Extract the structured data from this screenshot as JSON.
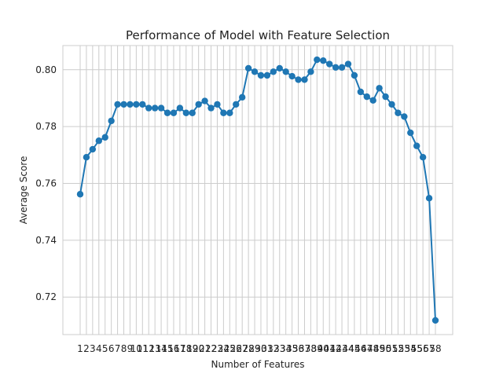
{
  "chart_data": {
    "type": "line",
    "title": "Performance of Model with Feature Selection",
    "xlabel": "Number of Features",
    "ylabel": "Average Score",
    "x": [
      1,
      2,
      3,
      4,
      5,
      6,
      7,
      8,
      9,
      10,
      11,
      12,
      13,
      14,
      15,
      16,
      17,
      18,
      19,
      20,
      21,
      22,
      23,
      24,
      25,
      26,
      27,
      28,
      29,
      30,
      31,
      32,
      33,
      34,
      35,
      36,
      37,
      38,
      39,
      40,
      41,
      42,
      43,
      44,
      45,
      46,
      47,
      48,
      49,
      50,
      51,
      52,
      53,
      54,
      55,
      56,
      57,
      58
    ],
    "x_tick_labels": [
      "1",
      "2",
      "3",
      "4",
      "5",
      "6",
      "7",
      "8",
      "9",
      "10",
      "11",
      "12",
      "13",
      "14",
      "15",
      "16",
      "17",
      "18",
      "19",
      "20",
      "21",
      "22",
      "23",
      "24",
      "25",
      "26",
      "27",
      "28",
      "29",
      "30",
      "31",
      "32",
      "33",
      "34",
      "35",
      "36",
      "37",
      "38",
      "39",
      "40",
      "41",
      "42",
      "43",
      "44",
      "45",
      "46",
      "47",
      "48",
      "49",
      "50",
      "51",
      "52",
      "53",
      "54",
      "55",
      "56",
      "57",
      "58"
    ],
    "y": [
      0.7562,
      0.7692,
      0.772,
      0.775,
      0.7762,
      0.782,
      0.7878,
      0.7878,
      0.7878,
      0.7878,
      0.7878,
      0.7865,
      0.7865,
      0.7865,
      0.7848,
      0.7848,
      0.7865,
      0.7848,
      0.7848,
      0.7878,
      0.789,
      0.7865,
      0.7878,
      0.7848,
      0.7848,
      0.7878,
      0.7903,
      0.8005,
      0.7993,
      0.798,
      0.798,
      0.7993,
      0.8005,
      0.7993,
      0.7977,
      0.7965,
      0.7965,
      0.7993,
      0.8035,
      0.8032,
      0.802,
      0.8008,
      0.8008,
      0.802,
      0.798,
      0.7922,
      0.7905,
      0.7892,
      0.7935,
      0.7905,
      0.7878,
      0.7848,
      0.7835,
      0.7778,
      0.7732,
      0.7692,
      0.7548,
      0.7118
    ],
    "ylim": [
      0.7068,
      0.8085
    ],
    "y_ticks": [
      "0.72",
      "0.74",
      "0.76",
      "0.78",
      "0.80"
    ],
    "grid": true,
    "color": "#1f77b4"
  }
}
